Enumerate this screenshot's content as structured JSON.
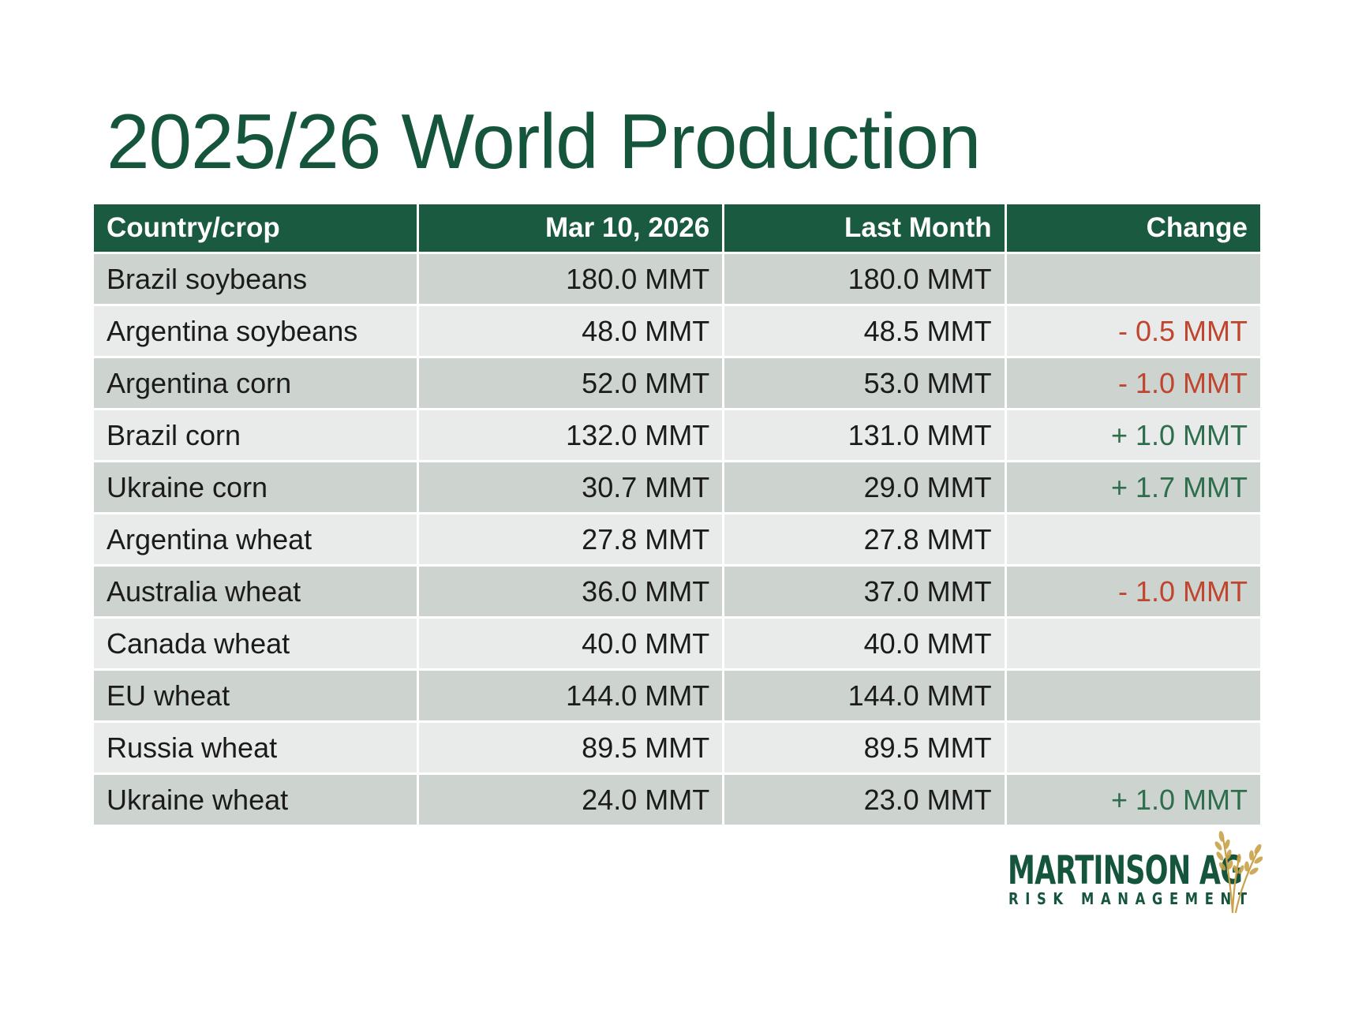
{
  "slide": {
    "title": "2025/26 World Production"
  },
  "table": {
    "headers": {
      "crop": "Country/crop",
      "current": "Mar 10, 2026",
      "last": "Last Month",
      "change": "Change"
    },
    "rows": [
      {
        "crop": "Brazil soybeans",
        "current": "180.0 MMT",
        "last": "180.0 MMT",
        "change": "",
        "trend": "none"
      },
      {
        "crop": "Argentina soybeans",
        "current": "48.0 MMT",
        "last": "48.5 MMT",
        "change": "- 0.5 MMT",
        "trend": "down"
      },
      {
        "crop": "Argentina corn",
        "current": "52.0 MMT",
        "last": "53.0 MMT",
        "change": "- 1.0 MMT",
        "trend": "down"
      },
      {
        "crop": "Brazil corn",
        "current": "132.0 MMT",
        "last": "131.0 MMT",
        "change": "+ 1.0 MMT",
        "trend": "up"
      },
      {
        "crop": "Ukraine corn",
        "current": "30.7 MMT",
        "last": "29.0 MMT",
        "change": "+ 1.7 MMT",
        "trend": "up"
      },
      {
        "crop": "Argentina wheat",
        "current": "27.8 MMT",
        "last": "27.8 MMT",
        "change": "",
        "trend": "none"
      },
      {
        "crop": "Australia wheat",
        "current": "36.0 MMT",
        "last": "37.0 MMT",
        "change": "- 1.0 MMT",
        "trend": "down"
      },
      {
        "crop": "Canada wheat",
        "current": "40.0 MMT",
        "last": "40.0 MMT",
        "change": "",
        "trend": "none"
      },
      {
        "crop": "EU wheat",
        "current": "144.0 MMT",
        "last": "144.0 MMT",
        "change": "",
        "trend": "none"
      },
      {
        "crop": "Russia wheat",
        "current": "89.5 MMT",
        "last": "89.5 MMT",
        "change": "",
        "trend": "none"
      },
      {
        "crop": "Ukraine wheat",
        "current": "24.0 MMT",
        "last": "23.0 MMT",
        "change": "+ 1.0 MMT",
        "trend": "up"
      }
    ]
  },
  "logo": {
    "name": "MARTINSON AG",
    "tagline": "RISK MANAGEMENT",
    "icon": "wheat-icon"
  },
  "colors": {
    "brand_green": "#14553c",
    "header_green": "#1a5a40",
    "row_dark": "#cdd3cf",
    "row_light": "#e8ebe9",
    "negative": "#c0452e",
    "positive": "#2e6e4c",
    "wheat_gold": "#c9a24a"
  }
}
